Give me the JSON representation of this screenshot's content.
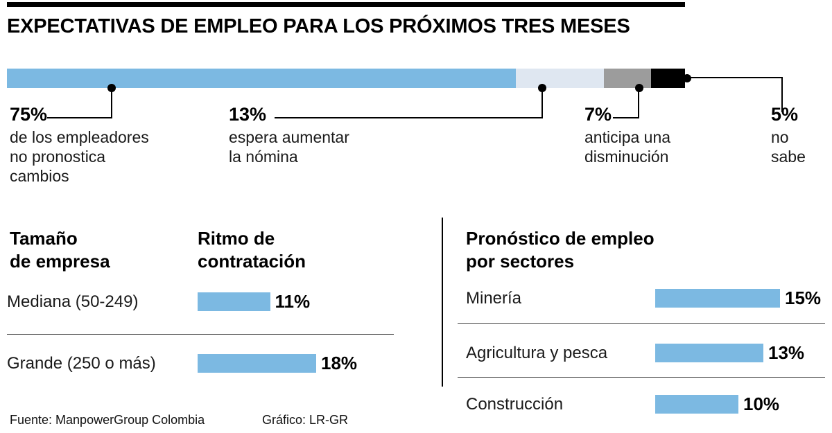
{
  "title": "EXPECTATIVAS DE EMPLEO PARA LOS PRÓXIMOS TRES MESES",
  "colors": {
    "blue": "#7cb9e2",
    "pale": "#dfe7f1",
    "gray": "#9c9c9c",
    "black": "#000000"
  },
  "footer": {
    "source": "Fuente: ManpowerGroup Colombia",
    "credit": "Gráfico: LR-GR"
  },
  "chart_data": [
    {
      "type": "bar",
      "subtype": "stacked-horizontal",
      "title": "Expectativas de empleo para los próximos tres meses",
      "unit": "%",
      "segments": [
        {
          "value": 75,
          "label": "75%",
          "description": "de los empleadores\nno pronostica\ncambios",
          "color": "#7cb9e2"
        },
        {
          "value": 13,
          "label": "13%",
          "description": "espera aumentar\nla nómina",
          "color": "#dfe7f1"
        },
        {
          "value": 7,
          "label": "7%",
          "description": "anticipa una\ndisminución",
          "color": "#9c9c9c"
        },
        {
          "value": 5,
          "label": "5%",
          "description": "no\nsabe",
          "color": "#000000"
        }
      ]
    },
    {
      "type": "bar",
      "title": "Ritmo de contratación por tamaño de empresa",
      "col1_header": "Tamaño\nde empresa",
      "col2_header": "Ritmo de\ncontratación",
      "categories": [
        "Mediana (50-249)",
        "Grande (250 o más)"
      ],
      "values": [
        11,
        18
      ],
      "value_labels": [
        "11%",
        "18%"
      ],
      "xlabel": "",
      "ylabel": "",
      "unit": "%"
    },
    {
      "type": "bar",
      "title": "Pronóstico de empleo\npor sectores",
      "categories": [
        "Minería",
        "Agricultura y pesca",
        "Construcción"
      ],
      "values": [
        15,
        13,
        10
      ],
      "value_labels": [
        "15%",
        "13%",
        "10%"
      ],
      "xlabel": "",
      "ylabel": "",
      "unit": "%"
    }
  ]
}
